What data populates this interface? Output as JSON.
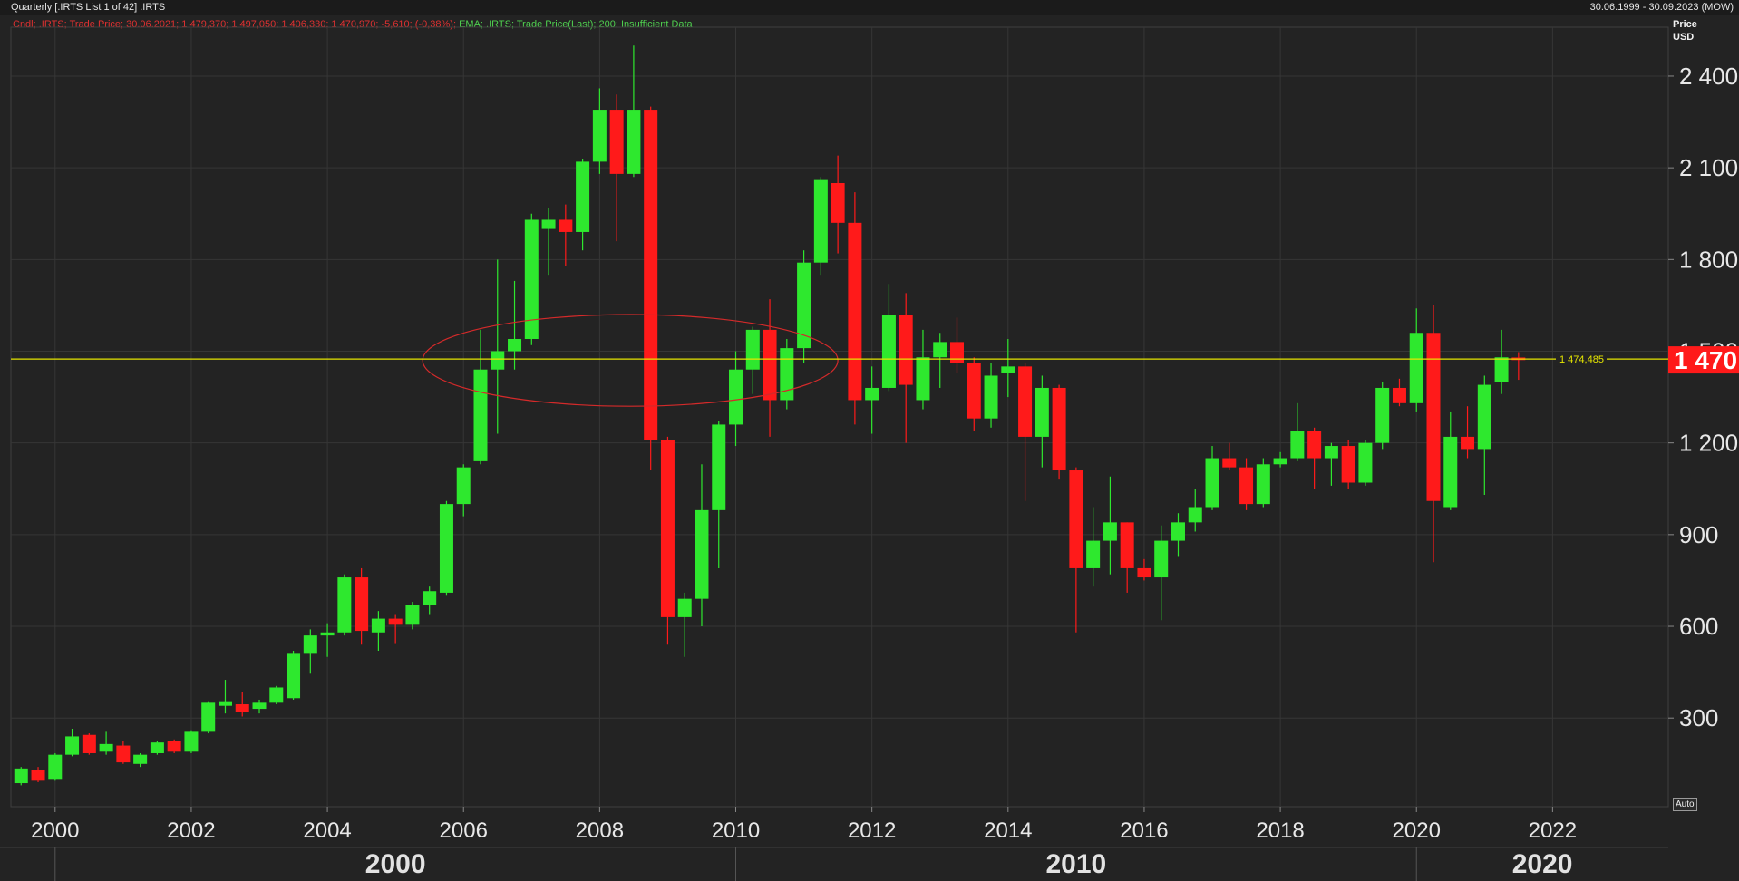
{
  "header": {
    "title": "Quarterly [.IRTS List 1 of 42] .IRTS",
    "date_range": "30.06.1999 - 30.09.2023 (MOW)"
  },
  "legend": {
    "candle_text": "Cndl; .IRTS; Trade Price; 30.06.2021; 1 479,370; 1 497,050; 1 406,330; 1 470,970; -5,610; (-0,38%);",
    "ema_text": " EMA; .IRTS; Trade Price(Last); 200; Insufficient Data"
  },
  "price_axis": {
    "unit_line1": "Price",
    "unit_line2": "USD",
    "auto_label": "Auto"
  },
  "hline_label": "1 474,485",
  "last_price_label": "1 470",
  "colors": {
    "background": "#232323",
    "up": "#2ee82e",
    "down": "#ff1a1a",
    "hline": "#e6e600",
    "ellipse": "#d42a2a",
    "grid": "#363636"
  },
  "chart_data": {
    "type": "candlestick",
    "title": "Quarterly [.IRTS List 1 of 42] .IRTS",
    "x_axis": {
      "ticks": [
        "2000",
        "2002",
        "2004",
        "2006",
        "2008",
        "2010",
        "2012",
        "2014",
        "2016",
        "2018",
        "2020",
        "2022"
      ],
      "decades": [
        "2000",
        "2010",
        "2020"
      ],
      "range": [
        1999.35,
        2023.7
      ]
    },
    "y_axis": {
      "ticks": [
        300,
        600,
        900,
        1200,
        1500,
        1800,
        2100,
        2400
      ],
      "tick_labels": [
        "300",
        "600",
        "900",
        "1 200",
        "1 500",
        "1 800",
        "2 100",
        "2 400"
      ],
      "range": [
        10,
        2560
      ],
      "unit": "USD",
      "grid": true
    },
    "horizontal_line": 1474.485,
    "ellipse_annotation": {
      "x_range": [
        2005.4,
        2011.5
      ],
      "y_range": [
        1320,
        1620
      ]
    },
    "series": [
      {
        "t": 1999.5,
        "o": 87,
        "h": 140,
        "l": 80,
        "c": 135
      },
      {
        "t": 1999.75,
        "o": 130,
        "h": 140,
        "l": 90,
        "c": 95
      },
      {
        "t": 2000.0,
        "o": 98,
        "h": 185,
        "l": 95,
        "c": 180
      },
      {
        "t": 2000.25,
        "o": 180,
        "h": 265,
        "l": 175,
        "c": 240
      },
      {
        "t": 2000.5,
        "o": 245,
        "h": 250,
        "l": 180,
        "c": 185
      },
      {
        "t": 2000.75,
        "o": 190,
        "h": 255,
        "l": 180,
        "c": 215
      },
      {
        "t": 2001.0,
        "o": 210,
        "h": 225,
        "l": 150,
        "c": 155
      },
      {
        "t": 2001.25,
        "o": 150,
        "h": 185,
        "l": 140,
        "c": 180
      },
      {
        "t": 2001.5,
        "o": 185,
        "h": 225,
        "l": 180,
        "c": 220
      },
      {
        "t": 2001.75,
        "o": 225,
        "h": 230,
        "l": 185,
        "c": 190
      },
      {
        "t": 2002.0,
        "o": 190,
        "h": 260,
        "l": 185,
        "c": 255
      },
      {
        "t": 2002.25,
        "o": 255,
        "h": 355,
        "l": 250,
        "c": 350
      },
      {
        "t": 2002.5,
        "o": 340,
        "h": 425,
        "l": 315,
        "c": 355
      },
      {
        "t": 2002.75,
        "o": 345,
        "h": 385,
        "l": 305,
        "c": 320
      },
      {
        "t": 2003.0,
        "o": 330,
        "h": 360,
        "l": 315,
        "c": 350
      },
      {
        "t": 2003.25,
        "o": 350,
        "h": 405,
        "l": 345,
        "c": 400
      },
      {
        "t": 2003.5,
        "o": 365,
        "h": 520,
        "l": 360,
        "c": 510
      },
      {
        "t": 2003.75,
        "o": 510,
        "h": 590,
        "l": 445,
        "c": 570
      },
      {
        "t": 2004.0,
        "o": 570,
        "h": 610,
        "l": 500,
        "c": 580
      },
      {
        "t": 2004.25,
        "o": 580,
        "h": 770,
        "l": 570,
        "c": 760
      },
      {
        "t": 2004.5,
        "o": 760,
        "h": 790,
        "l": 540,
        "c": 585
      },
      {
        "t": 2004.75,
        "o": 580,
        "h": 650,
        "l": 520,
        "c": 625
      },
      {
        "t": 2005.0,
        "o": 625,
        "h": 640,
        "l": 545,
        "c": 605
      },
      {
        "t": 2005.25,
        "o": 605,
        "h": 680,
        "l": 590,
        "c": 670
      },
      {
        "t": 2005.5,
        "o": 670,
        "h": 730,
        "l": 640,
        "c": 715
      },
      {
        "t": 2005.75,
        "o": 710,
        "h": 1010,
        "l": 700,
        "c": 1000
      },
      {
        "t": 2006.0,
        "o": 1000,
        "h": 1130,
        "l": 960,
        "c": 1120
      },
      {
        "t": 2006.25,
        "o": 1140,
        "h": 1570,
        "l": 1130,
        "c": 1440
      },
      {
        "t": 2006.5,
        "o": 1440,
        "h": 1800,
        "l": 1230,
        "c": 1500
      },
      {
        "t": 2006.75,
        "o": 1500,
        "h": 1730,
        "l": 1440,
        "c": 1540
      },
      {
        "t": 2007.0,
        "o": 1540,
        "h": 1950,
        "l": 1520,
        "c": 1930
      },
      {
        "t": 2007.25,
        "o": 1900,
        "h": 1970,
        "l": 1750,
        "c": 1930
      },
      {
        "t": 2007.5,
        "o": 1930,
        "h": 1980,
        "l": 1780,
        "c": 1890
      },
      {
        "t": 2007.75,
        "o": 1890,
        "h": 2130,
        "l": 1830,
        "c": 2120
      },
      {
        "t": 2008.0,
        "o": 2120,
        "h": 2360,
        "l": 2080,
        "c": 2290
      },
      {
        "t": 2008.25,
        "o": 2290,
        "h": 2340,
        "l": 1860,
        "c": 2080
      },
      {
        "t": 2008.5,
        "o": 2080,
        "h": 2500,
        "l": 2070,
        "c": 2290
      },
      {
        "t": 2008.75,
        "o": 2290,
        "h": 2300,
        "l": 1110,
        "c": 1210
      },
      {
        "t": 2009.0,
        "o": 1210,
        "h": 1220,
        "l": 540,
        "c": 630
      },
      {
        "t": 2009.25,
        "o": 630,
        "h": 710,
        "l": 500,
        "c": 690
      },
      {
        "t": 2009.5,
        "o": 690,
        "h": 1130,
        "l": 600,
        "c": 980
      },
      {
        "t": 2009.75,
        "o": 980,
        "h": 1270,
        "l": 790,
        "c": 1260
      },
      {
        "t": 2010.0,
        "o": 1260,
        "h": 1500,
        "l": 1190,
        "c": 1440
      },
      {
        "t": 2010.25,
        "o": 1440,
        "h": 1580,
        "l": 1360,
        "c": 1570
      },
      {
        "t": 2010.5,
        "o": 1570,
        "h": 1670,
        "l": 1220,
        "c": 1340
      },
      {
        "t": 2010.75,
        "o": 1340,
        "h": 1540,
        "l": 1310,
        "c": 1510
      },
      {
        "t": 2011.0,
        "o": 1510,
        "h": 1830,
        "l": 1460,
        "c": 1790
      },
      {
        "t": 2011.25,
        "o": 1790,
        "h": 2070,
        "l": 1750,
        "c": 2060
      },
      {
        "t": 2011.5,
        "o": 2050,
        "h": 2140,
        "l": 1820,
        "c": 1920
      },
      {
        "t": 2011.75,
        "o": 1920,
        "h": 2020,
        "l": 1260,
        "c": 1340
      },
      {
        "t": 2012.0,
        "o": 1340,
        "h": 1450,
        "l": 1230,
        "c": 1380
      },
      {
        "t": 2012.25,
        "o": 1380,
        "h": 1720,
        "l": 1370,
        "c": 1620
      },
      {
        "t": 2012.5,
        "o": 1620,
        "h": 1690,
        "l": 1200,
        "c": 1390
      },
      {
        "t": 2012.75,
        "o": 1340,
        "h": 1570,
        "l": 1310,
        "c": 1480
      },
      {
        "t": 2013.0,
        "o": 1480,
        "h": 1560,
        "l": 1380,
        "c": 1530
      },
      {
        "t": 2013.25,
        "o": 1530,
        "h": 1610,
        "l": 1430,
        "c": 1460
      },
      {
        "t": 2013.5,
        "o": 1460,
        "h": 1480,
        "l": 1240,
        "c": 1280
      },
      {
        "t": 2013.75,
        "o": 1280,
        "h": 1460,
        "l": 1250,
        "c": 1420
      },
      {
        "t": 2014.0,
        "o": 1430,
        "h": 1540,
        "l": 1350,
        "c": 1450
      },
      {
        "t": 2014.25,
        "o": 1450,
        "h": 1460,
        "l": 1010,
        "c": 1220
      },
      {
        "t": 2014.5,
        "o": 1220,
        "h": 1420,
        "l": 1120,
        "c": 1380
      },
      {
        "t": 2014.75,
        "o": 1380,
        "h": 1390,
        "l": 1080,
        "c": 1110
      },
      {
        "t": 2015.0,
        "o": 1110,
        "h": 1120,
        "l": 580,
        "c": 790
      },
      {
        "t": 2015.25,
        "o": 790,
        "h": 990,
        "l": 730,
        "c": 880
      },
      {
        "t": 2015.5,
        "o": 880,
        "h": 1090,
        "l": 770,
        "c": 940
      },
      {
        "t": 2015.75,
        "o": 940,
        "h": 940,
        "l": 710,
        "c": 790
      },
      {
        "t": 2016.0,
        "o": 790,
        "h": 820,
        "l": 750,
        "c": 760
      },
      {
        "t": 2016.25,
        "o": 760,
        "h": 930,
        "l": 620,
        "c": 880
      },
      {
        "t": 2016.5,
        "o": 880,
        "h": 970,
        "l": 830,
        "c": 940
      },
      {
        "t": 2016.75,
        "o": 940,
        "h": 1050,
        "l": 910,
        "c": 990
      },
      {
        "t": 2017.0,
        "o": 990,
        "h": 1190,
        "l": 980,
        "c": 1150
      },
      {
        "t": 2017.25,
        "o": 1150,
        "h": 1200,
        "l": 1110,
        "c": 1120
      },
      {
        "t": 2017.5,
        "o": 1120,
        "h": 1150,
        "l": 980,
        "c": 1000
      },
      {
        "t": 2017.75,
        "o": 1000,
        "h": 1150,
        "l": 990,
        "c": 1130
      },
      {
        "t": 2018.0,
        "o": 1130,
        "h": 1170,
        "l": 1120,
        "c": 1150
      },
      {
        "t": 2018.25,
        "o": 1150,
        "h": 1330,
        "l": 1140,
        "c": 1240
      },
      {
        "t": 2018.5,
        "o": 1240,
        "h": 1250,
        "l": 1050,
        "c": 1150
      },
      {
        "t": 2018.75,
        "o": 1150,
        "h": 1200,
        "l": 1060,
        "c": 1190
      },
      {
        "t": 2019.0,
        "o": 1190,
        "h": 1210,
        "l": 1050,
        "c": 1070
      },
      {
        "t": 2019.25,
        "o": 1070,
        "h": 1210,
        "l": 1060,
        "c": 1200
      },
      {
        "t": 2019.5,
        "o": 1200,
        "h": 1400,
        "l": 1180,
        "c": 1380
      },
      {
        "t": 2019.75,
        "o": 1380,
        "h": 1410,
        "l": 1320,
        "c": 1330
      },
      {
        "t": 2020.0,
        "o": 1330,
        "h": 1640,
        "l": 1300,
        "c": 1560
      },
      {
        "t": 2020.25,
        "o": 1560,
        "h": 1650,
        "l": 810,
        "c": 1010
      },
      {
        "t": 2020.5,
        "o": 990,
        "h": 1300,
        "l": 980,
        "c": 1220
      },
      {
        "t": 2020.75,
        "o": 1220,
        "h": 1320,
        "l": 1150,
        "c": 1180
      },
      {
        "t": 2021.0,
        "o": 1180,
        "h": 1420,
        "l": 1030,
        "c": 1390
      },
      {
        "t": 2021.25,
        "o": 1400,
        "h": 1570,
        "l": 1360,
        "c": 1480
      },
      {
        "t": 2021.5,
        "o": 1479.37,
        "h": 1497.05,
        "l": 1406.33,
        "c": 1470.97
      }
    ]
  }
}
